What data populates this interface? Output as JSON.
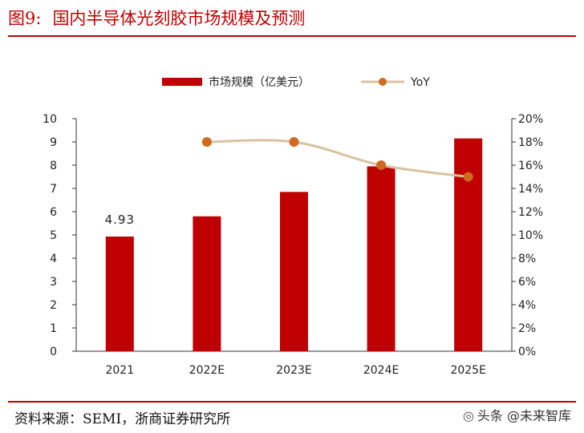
{
  "figure": {
    "number": "图9:",
    "title": "国内半导体光刻胶市场规模及预测",
    "source": "资料来源：SEMI，浙商证券研究所",
    "watermark_text": "头条 @未来智库"
  },
  "chart_data": {
    "type": "bar",
    "title": "国内半导体光刻胶市场规模及预测",
    "categories": [
      "2021",
      "2022E",
      "2023E",
      "2024E",
      "2025E"
    ],
    "series": [
      {
        "name": "市场规模（亿美元）",
        "type": "bar",
        "axis": "left",
        "color": "#c00000",
        "values": [
          4.93,
          5.8,
          6.85,
          7.95,
          9.15
        ]
      },
      {
        "name": "YoY",
        "type": "line",
        "axis": "right",
        "color": "#d8c2a0",
        "marker_color": "#d06a1e",
        "values": [
          null,
          18,
          18,
          16,
          15
        ]
      }
    ],
    "data_labels": [
      {
        "category": "2021",
        "text": "4.93"
      }
    ],
    "y_left": {
      "min": 0,
      "max": 10,
      "step": 1,
      "ticks": [
        "0",
        "1",
        "2",
        "3",
        "4",
        "5",
        "6",
        "7",
        "8",
        "9",
        "10"
      ]
    },
    "y_right": {
      "min": 0,
      "max": 20,
      "step": 2,
      "ticks": [
        "0%",
        "2%",
        "4%",
        "6%",
        "8%",
        "10%",
        "12%",
        "14%",
        "16%",
        "18%",
        "20%"
      ]
    },
    "legend_position": "top-center",
    "grid": false
  }
}
